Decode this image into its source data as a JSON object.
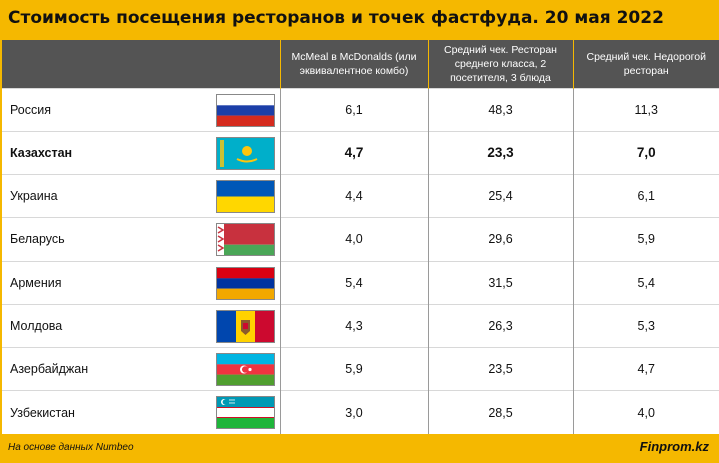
{
  "title": "Стоимость посещения ресторанов и точек фастфуда. 20 мая 2022",
  "columns": [
    "McMeal в McDonalds (или эквивалентное комбо)",
    "Средний чек. Ресторан среднего класса, 2 посетителя, 3 блюда",
    "Средний чек. Недорогой ресторан"
  ],
  "rows": [
    {
      "country": "Россия",
      "flag": "russia-flag",
      "values": [
        "6,1",
        "48,3",
        "11,3"
      ]
    },
    {
      "country": "Казахстан",
      "flag": "kazakhstan-flag",
      "values": [
        "4,7",
        "23,3",
        "7,0"
      ],
      "highlight": true
    },
    {
      "country": "Украина",
      "flag": "ukraine-flag",
      "values": [
        "4,4",
        "25,4",
        "6,1"
      ]
    },
    {
      "country": "Беларусь",
      "flag": "belarus-flag",
      "values": [
        "4,0",
        "29,6",
        "5,9"
      ]
    },
    {
      "country": "Армения",
      "flag": "armenia-flag",
      "values": [
        "5,4",
        "31,5",
        "5,4"
      ]
    },
    {
      "country": "Молдова",
      "flag": "moldova-flag",
      "values": [
        "4,3",
        "26,3",
        "5,3"
      ]
    },
    {
      "country": "Азербайджан",
      "flag": "azerbaijan-flag",
      "values": [
        "5,9",
        "23,5",
        "4,7"
      ]
    },
    {
      "country": "Узбекистан",
      "flag": "uzbekistan-flag",
      "values": [
        "3,0",
        "28,5",
        "4,0"
      ]
    }
  ],
  "footer": {
    "source": "На основе данных Numbeo",
    "brand": "Finprom.kz"
  },
  "colors": {
    "accent": "#f5b800",
    "header_bg": "#545454"
  }
}
